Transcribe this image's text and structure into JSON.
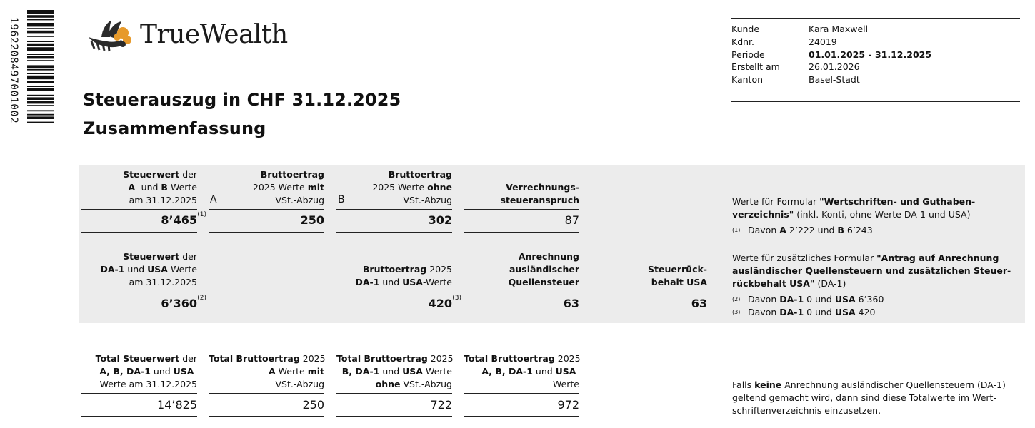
{
  "barcode": {
    "number": "1962208497001002"
  },
  "brand": {
    "name": "TrueWealth"
  },
  "colors": {
    "band": "#ececec",
    "logo_orange": "#e79a2b",
    "logo_dark": "#2b2b2b"
  },
  "client": {
    "rows": [
      {
        "label": "Kunde",
        "value": "Kara Maxwell",
        "bold": false
      },
      {
        "label": "Kdnr.",
        "value": "24019",
        "bold": false
      },
      {
        "label": "Periode",
        "value": "01.01.2025 - 31.12.2025",
        "bold": true
      },
      {
        "label": "Erstellt am",
        "value": "26.01.2026",
        "bold": false
      },
      {
        "label": "Kanton",
        "value": "Basel-Stadt",
        "bold": false
      }
    ]
  },
  "title": {
    "line1": "Steuerauszug in CHF 31.12.2025",
    "line2": "Zusammenfassung"
  },
  "row1": {
    "col1_header": [
      "<b>Steuerwert</b> der",
      "<b>A</b>- und <b>B</b>-Werte",
      "am 31.12.2025"
    ],
    "col1_value": "8’465",
    "col1_sup": "(1)",
    "marker_a": "A",
    "col2_header": [
      "<b>Bruttoertrag</b>",
      "2025 Werte <b>mit</b>",
      "VSt.-Abzug"
    ],
    "col2_value": "250",
    "marker_b": "B",
    "col3_header": [
      "<b>Bruttoertrag</b>",
      "2025 Werte <b>ohne</b>",
      "VSt.-Abzug"
    ],
    "col3_value": "302",
    "col4_header": [
      "<b>Verrechnungs-</b>",
      "<b>steueranspruch</b>"
    ],
    "col4_value": "87"
  },
  "row2": {
    "col1_header": [
      "<b>Steuerwert</b> der",
      "<b>DA-1</b> und <b>USA</b>-Werte",
      "am 31.12.2025"
    ],
    "col1_value": "6’360",
    "col1_sup": "(2)",
    "col3_header": [
      "<b>Bruttoertrag</b> 2025",
      "<b>DA-1</b> und <b>USA</b>-Werte"
    ],
    "col3_value": "420",
    "col3_sup": "(3)",
    "col4_header": [
      "<b>Anrechnung</b>",
      "<b>ausländischer</b>",
      "<b>Quellensteuer</b>"
    ],
    "col4_value": "63",
    "col5_header": [
      "<b>Steuerrück-</b>",
      "<b>behalt USA</b>"
    ],
    "col5_value": "63"
  },
  "totals": {
    "col1_header": [
      "<b>Total Steuerwert</b> der",
      "<b>A, B, DA-1</b> und <b>USA</b>-",
      "Werte am 31.12.2025"
    ],
    "col1_value": "14’825",
    "col2_header": [
      "<b>Total Bruttoertrag</b> 2025",
      "<b>A</b>-Werte <b>mit</b>",
      "VSt.-Abzug"
    ],
    "col2_value": "250",
    "col3_header": [
      "<b>Total Bruttoertrag</b> 2025",
      "<b>B, DA-1</b> und <b>USA</b>-Werte",
      "<b>ohne</b> VSt.-Abzug"
    ],
    "col3_value": "722",
    "col4_header": [
      "<b>Total Bruttoertrag</b> 2025",
      "<b>A, B, DA-1</b> und <b>USA</b>-",
      "Werte"
    ],
    "col4_value": "972"
  },
  "notes": {
    "block1": [
      "Werte für Formular <b>\"Wertschriften- und Guthaben-</b>",
      "<b>verzeichnis\"</b> (inkl. Konti, ohne Werte DA-1 und USA)"
    ],
    "block1_fn": [
      {
        "n": "(1)",
        "text": "Davon <b>A</b> 2’222 und <b>B</b> 6’243"
      }
    ],
    "block2": [
      "Werte für zusätzliches Formular <b>\"Antrag auf Anrechnung</b>",
      "<b>ausländischer Quellensteuern und zusätzlichen Steuer-</b>",
      "<b>rückbehalt USA\"</b> (DA-1)"
    ],
    "block2_fn": [
      {
        "n": "(2)",
        "text": "Davon <b>DA-1</b> 0 und <b>USA</b> 6’360"
      },
      {
        "n": "(3)",
        "text": "Davon <b>DA-1</b> 0 und <b>USA</b> 420"
      }
    ],
    "block3": [
      "Falls <b>keine</b> Anrechnung ausländischer Quellensteuern (DA-1)",
      "geltend gemacht wird, dann sind diese Totalwerte im Wert-",
      "schriftenverzeichnis einzusetzen."
    ]
  }
}
